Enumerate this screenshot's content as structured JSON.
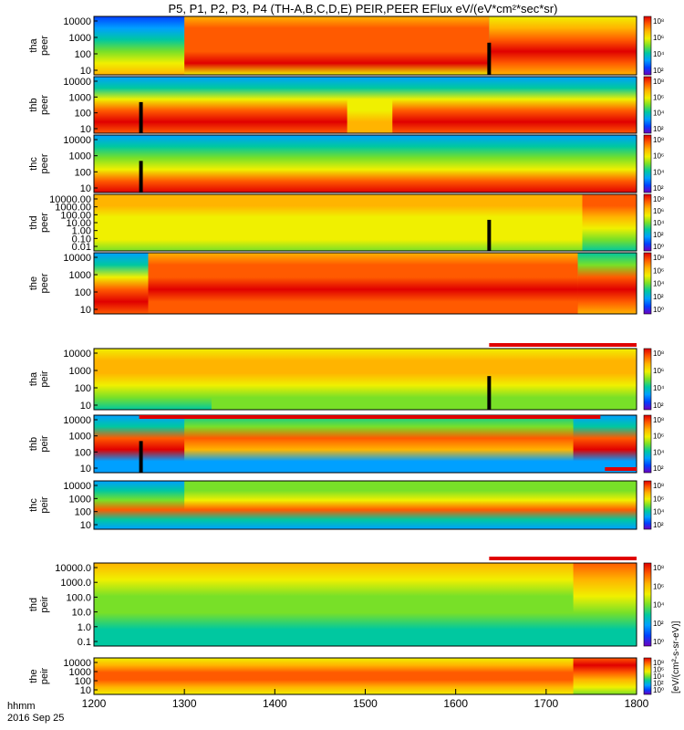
{
  "chart_data": {
    "type": "heatmap",
    "title": "P5, P1, P2, P3, P4 (TH-A,B,C,D,E) PEIR,PEER EFlux eV/(eV*cm²*sec*sr)",
    "x_axis": {
      "ticks": [
        "1200",
        "1300",
        "1400",
        "1500",
        "1600",
        "1700",
        "1800"
      ],
      "range": [
        1200,
        1800
      ],
      "label_line1": "hhmm",
      "label_line2": "2016 Sep 25"
    },
    "colorbar_label": "[eV/(cm²-s-sr-eV)]",
    "colorbar_ticks": [
      "10⁸",
      "10⁶",
      "10⁴",
      "10²"
    ],
    "colorbar_ticks_extended": [
      "10⁸",
      "10⁶",
      "10⁴",
      "10²",
      "10⁰"
    ],
    "colorscale": [
      "#e00000",
      "#ff5a00",
      "#ffb400",
      "#f0f000",
      "#78e028",
      "#00c8a0",
      "#00a0ff",
      "#0040ff",
      "#7000c0"
    ],
    "panels": [
      {
        "id": "tha-peer",
        "ylabel1": "tha",
        "ylabel2": "peer",
        "yticks": [
          "10000",
          "1000",
          "100",
          "10"
        ],
        "ylog": true,
        "cbar": "std",
        "flag_bar": null,
        "data_gap_at": 1637,
        "scheme": "peer-a"
      },
      {
        "id": "thb-peer",
        "ylabel1": "thb",
        "ylabel2": "peer",
        "yticks": [
          "10000",
          "1000",
          "100",
          "10"
        ],
        "ylog": true,
        "cbar": "std",
        "flag_bar": null,
        "data_gap_at": 1252,
        "scheme": "peer-b"
      },
      {
        "id": "thc-peer",
        "ylabel1": "thc",
        "ylabel2": "peer",
        "yticks": [
          "10000",
          "1000",
          "100",
          "10"
        ],
        "ylog": true,
        "cbar": "std",
        "flag_bar": null,
        "data_gap_at": 1252,
        "scheme": "peer-c"
      },
      {
        "id": "thd-peer",
        "ylabel1": "thd",
        "ylabel2": "peer",
        "yticks": [
          "10000.00",
          "1000.00",
          "100.00",
          "10.00",
          "1.00",
          "0.10",
          "0.01"
        ],
        "ylog": true,
        "cbar": "ext",
        "flag_bar": null,
        "data_gap_at": 1637,
        "scheme": "peer-d"
      },
      {
        "id": "the-peer",
        "ylabel1": "the",
        "ylabel2": "peer",
        "yticks": [
          "10000",
          "1000",
          "100",
          "10"
        ],
        "ylog": true,
        "cbar": "ext",
        "flag_bar": null,
        "data_gap_at": null,
        "scheme": "peer-e"
      },
      {
        "id": "tha-peir",
        "ylabel1": "tha",
        "ylabel2": "peir",
        "yticks": [
          "10000",
          "1000",
          "100",
          "10"
        ],
        "ylog": true,
        "cbar": "std",
        "flag_bar": {
          "start": 1637,
          "end": 1800
        },
        "data_gap_at": 1637,
        "scheme": "peir-a"
      },
      {
        "id": "thb-peir",
        "ylabel1": "thb",
        "ylabel2": "peir",
        "yticks": [
          "10000",
          "1000",
          "100",
          "10"
        ],
        "ylog": true,
        "cbar": "std",
        "flag_bar": {
          "start": 1250,
          "end": 1760
        },
        "data_gap_at": 1252,
        "scheme": "peir-b"
      },
      {
        "id": "thc-peir",
        "ylabel1": "thc",
        "ylabel2": "peir",
        "yticks": [
          "10000",
          "1000",
          "100",
          "10"
        ],
        "ylog": true,
        "cbar": "std",
        "flag_bar": {
          "start": 1765,
          "end": 1800
        },
        "data_gap_at": null,
        "scheme": "peir-c"
      },
      {
        "id": "thd-peir",
        "ylabel1": "thd",
        "ylabel2": "peir",
        "yticks": [
          "10000.0",
          "1000.0",
          "100.0",
          "10.0",
          "1.0",
          "0.1"
        ],
        "ylog": true,
        "cbar": "ext",
        "flag_bar": {
          "start": 1637,
          "end": 1800
        },
        "data_gap_at": null,
        "scheme": "peir-d"
      },
      {
        "id": "the-peir",
        "ylabel1": "the",
        "ylabel2": "peir",
        "yticks": [
          "10000",
          "1000",
          "100",
          "10"
        ],
        "ylog": true,
        "cbar": "ext",
        "flag_bar": null,
        "data_gap_at": null,
        "scheme": "peir-e"
      }
    ]
  }
}
